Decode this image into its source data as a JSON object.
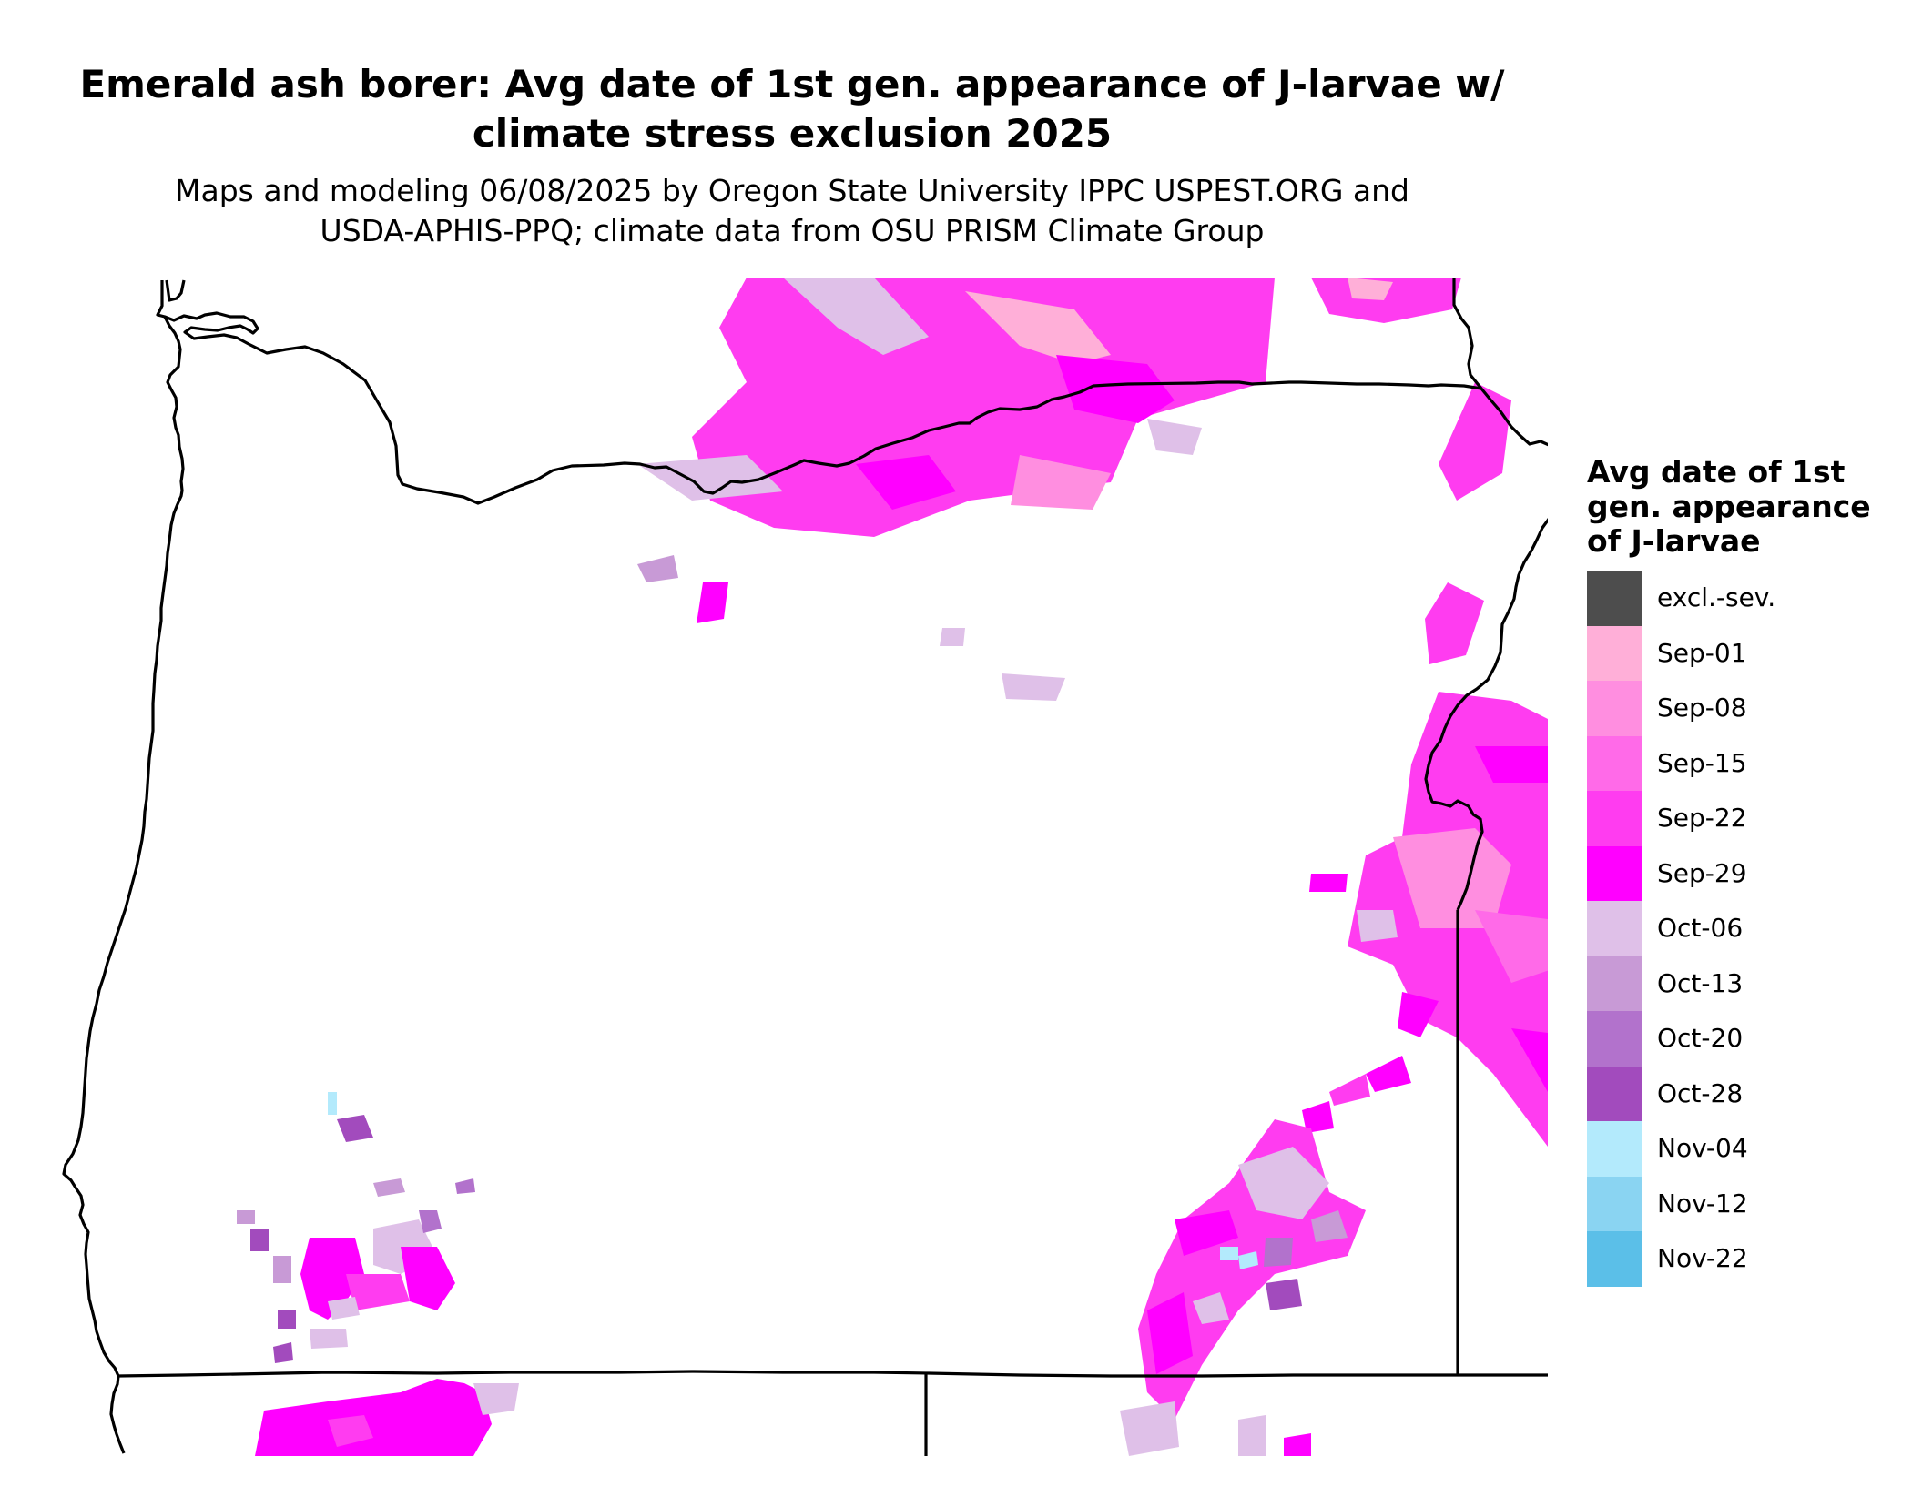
{
  "title": {
    "line1": "Emerald ash borer: Avg date of 1st gen. appearance of J-larvae w/",
    "line2": "climate stress exclusion 2025"
  },
  "subtitle": {
    "line1": "Maps and modeling 06/08/2025 by Oregon State University IPPC USPEST.ORG and",
    "line2": "USDA-APHIS-PPQ; climate data from OSU PRISM Climate Group"
  },
  "legend": {
    "title_lines": [
      "Avg date of 1st",
      "gen. appearance",
      "of J-larvae"
    ],
    "items": [
      {
        "label": "excl.-sev.",
        "color": "#4d4d4d"
      },
      {
        "label": "Sep-01",
        "color": "#ffafd8"
      },
      {
        "label": "Sep-08",
        "color": "#ff8ee0"
      },
      {
        "label": "Sep-15",
        "color": "#ff6ae8"
      },
      {
        "label": "Sep-22",
        "color": "#ff3cf0"
      },
      {
        "label": "Sep-29",
        "color": "#ff00ff"
      },
      {
        "label": "Oct-06",
        "color": "#dfc0e8"
      },
      {
        "label": "Oct-13",
        "color": "#c89ad6"
      },
      {
        "label": "Oct-20",
        "color": "#b272cc"
      },
      {
        "label": "Oct-28",
        "color": "#a24bbd"
      },
      {
        "label": "Nov-04",
        "color": "#b3eafc"
      },
      {
        "label": "Nov-12",
        "color": "#8ad4f2"
      },
      {
        "label": "Nov-22",
        "color": "#5bbfe8"
      }
    ]
  }
}
